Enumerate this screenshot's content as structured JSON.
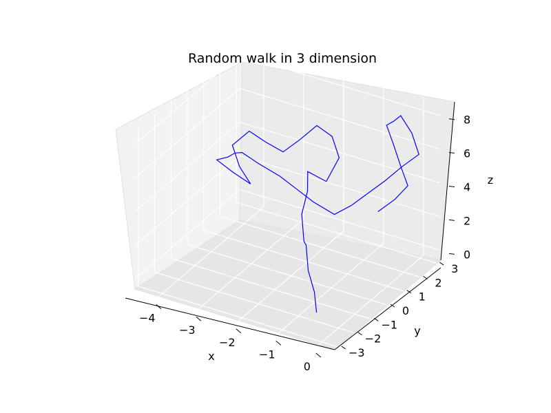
{
  "chart_data": {
    "type": "line",
    "projection": "3d",
    "title": "Random walk in 3 dimension",
    "xlabel": "x",
    "ylabel": "y",
    "zlabel": "z",
    "x_ticks": [
      "−4",
      "−3",
      "−2",
      "−1",
      "0"
    ],
    "y_ticks": [
      "−3",
      "−2",
      "−1",
      "0",
      "1",
      "2",
      "3"
    ],
    "z_ticks": [
      "0",
      "2",
      "4",
      "6",
      "8"
    ],
    "xlim": [
      -4.6,
      0.4
    ],
    "ylim": [
      -3.2,
      3.2
    ],
    "zlim": [
      -0.6,
      8.8
    ],
    "grid": true,
    "legend": "none",
    "series": [
      {
        "color": "#0000ff",
        "x": [
          -0.3,
          -0.6,
          -1.0,
          -1.3,
          -1.6,
          -1.9,
          -2.0,
          -2.2,
          -1.9,
          -1.7,
          -2.0,
          -2.3,
          -2.6,
          -2.9,
          -3.2,
          -3.5,
          -3.8,
          -3.5,
          -3.1,
          -3.4,
          -3.7,
          -3.3,
          -3.0,
          -2.7,
          -2.4,
          -2.0,
          -1.7,
          -1.4,
          -1.0,
          -0.7,
          -0.4,
          -0.1,
          0.2,
          0.5,
          0.2,
          -0.2,
          -0.5,
          -0.8,
          -0.5,
          -0.2,
          0.1,
          -0.1,
          -0.4
        ],
        "y": [
          -2.6,
          -2.0,
          -1.4,
          -0.8,
          -0.2,
          0.4,
          1.0,
          1.5,
          1.9,
          2.2,
          2.5,
          2.3,
          2.0,
          1.7,
          1.4,
          1.1,
          0.8,
          0.5,
          0.2,
          -0.1,
          -0.4,
          -0.7,
          -1.0,
          -1.3,
          -1.0,
          -0.7,
          -0.4,
          -0.1,
          0.2,
          0.5,
          0.8,
          1.1,
          1.4,
          1.7,
          2.0,
          2.3,
          2.6,
          2.9,
          2.6,
          2.3,
          2.0,
          1.7,
          1.4
        ],
        "z": [
          0.6,
          1.1,
          1.6,
          2.4,
          1.9,
          2.8,
          3.6,
          4.2,
          3.5,
          4.8,
          5.6,
          6.2,
          5.4,
          4.7,
          5.3,
          6.0,
          5.2,
          4.4,
          3.9,
          4.6,
          5.4,
          6.1,
          6.8,
          7.3,
          6.6,
          5.9,
          5.1,
          4.3,
          3.6,
          4.1,
          4.8,
          5.5,
          6.3,
          7.0,
          7.8,
          8.3,
          7.5,
          6.8,
          6.1,
          5.3,
          4.6,
          3.9,
          3.2
        ]
      }
    ]
  }
}
